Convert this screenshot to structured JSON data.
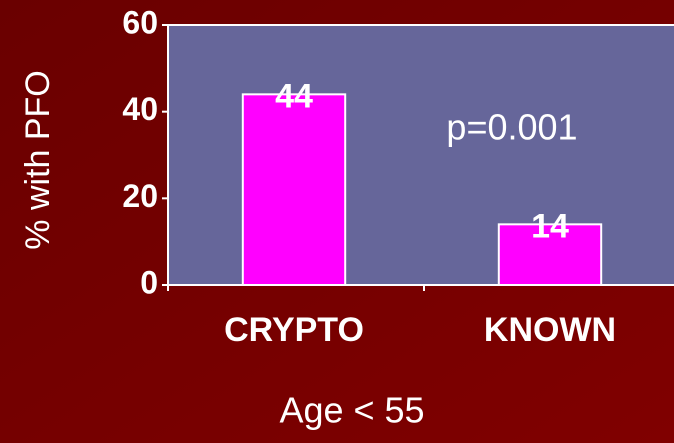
{
  "chart_data": {
    "type": "bar",
    "categories": [
      "CRYPTO",
      "KNOWN"
    ],
    "values": [
      44,
      14
    ],
    "color": "#ff00ff",
    "ylim": [
      0,
      60
    ],
    "yticks": [
      0,
      20,
      40,
      60
    ],
    "ylabel": "% with PFO",
    "xlabel": "Age  < 55",
    "annotation": "p=0.001"
  }
}
